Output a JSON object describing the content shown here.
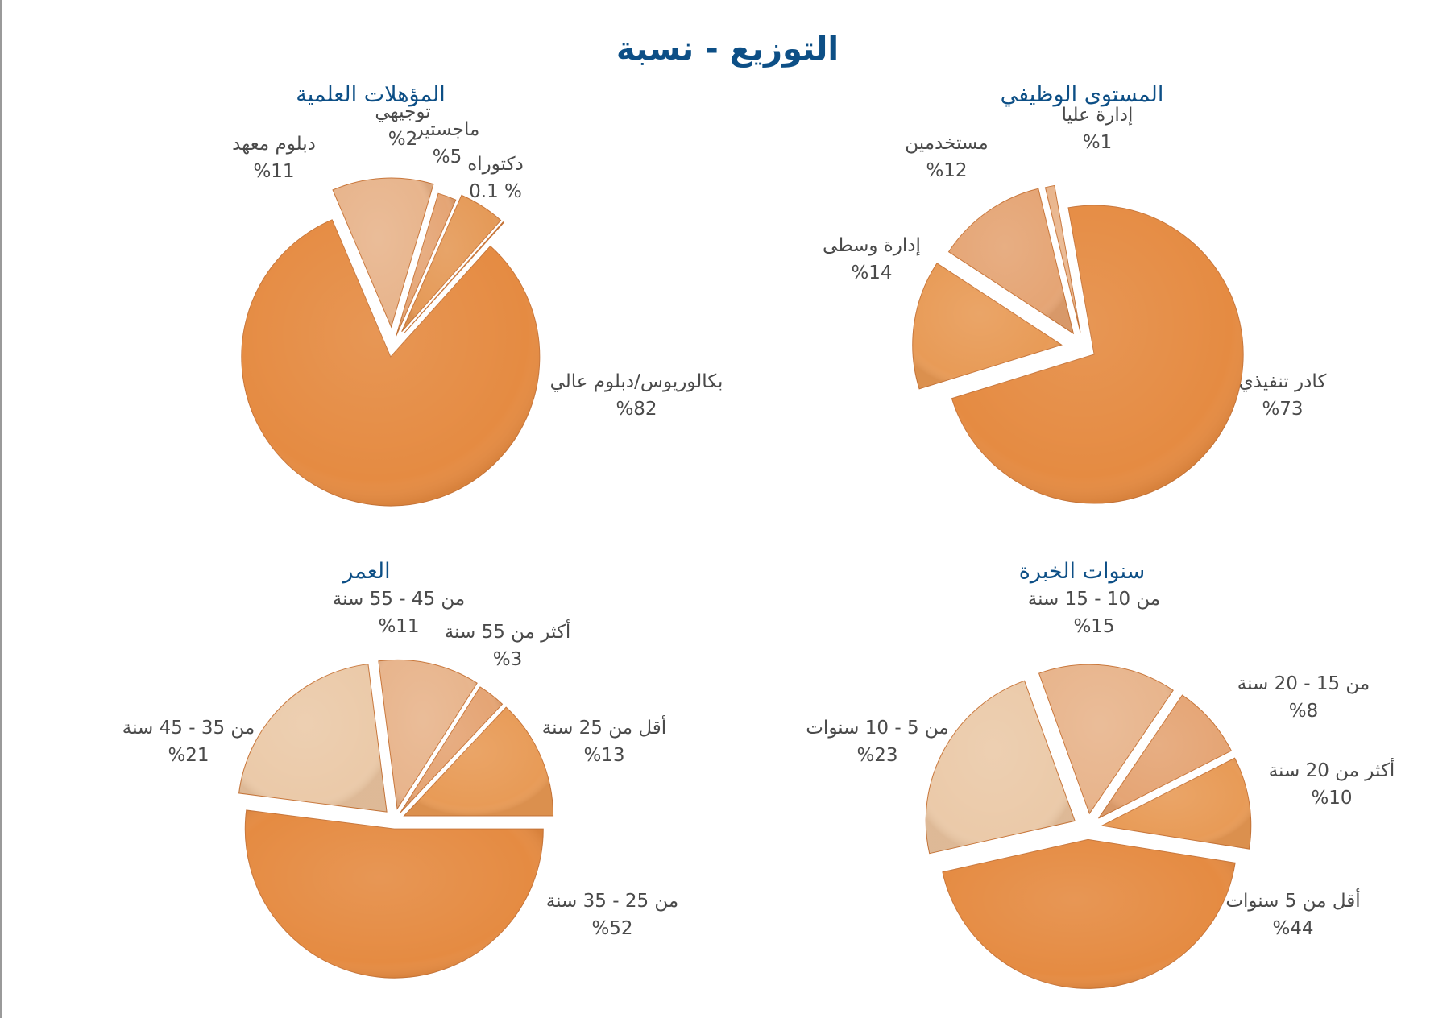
{
  "page": {
    "title": "التوزيع - نسبة"
  },
  "chart_data": [
    {
      "type": "pie",
      "title": "المستوى الوظيفي",
      "slices": [
        {
          "label": "كادر تنفيذي",
          "value_label": "%73",
          "value": 73,
          "color": "#e58b42"
        },
        {
          "label": "إدارة وسطى",
          "value_label": "%14",
          "value": 14,
          "color": "#e89b57"
        },
        {
          "label": "مستخدمين",
          "value_label": "%12",
          "value": 12,
          "color": "#e5a575"
        },
        {
          "label": "إدارة عليا",
          "value_label": "%1",
          "value": 1,
          "color": "#e9b58c"
        }
      ]
    },
    {
      "type": "pie",
      "title": "المؤهلات العلمية",
      "slices": [
        {
          "label": "بكالوريوس/دبلوم عالي",
          "value_label": "%82",
          "value": 82,
          "color": "#e58b42"
        },
        {
          "label": "دبلوم معهد",
          "value_label": "%11",
          "value": 11,
          "color": "#e8b58d"
        },
        {
          "label": "توجيهي",
          "value_label": "%2",
          "value": 2,
          "color": "#e5a575"
        },
        {
          "label": "ماجستير",
          "value_label": "%5",
          "value": 5,
          "color": "#e59a58"
        },
        {
          "label": "دكتوراه",
          "value_label": "% 0.1",
          "value": 0.1,
          "color": "#e58b42"
        }
      ]
    },
    {
      "type": "pie",
      "title": "سنوات الخبرة",
      "slices": [
        {
          "label": "أقل من 5 سنوات",
          "value_label": "%44",
          "value": 44,
          "color": "#e58b42"
        },
        {
          "label": "من 5 - 10 سنوات",
          "value_label": "%23",
          "value": 23,
          "color": "#ebcaa9"
        },
        {
          "label": "من 10 - 15 سنة",
          "value_label": "%15",
          "value": 15,
          "color": "#e8b58d"
        },
        {
          "label": "من 15 - 20 سنة",
          "value_label": "%8",
          "value": 8,
          "color": "#e5a575"
        },
        {
          "label": "أكثر من 20 سنة",
          "value_label": "%10",
          "value": 10,
          "color": "#e89b57"
        }
      ]
    },
    {
      "type": "pie",
      "title": "العمر",
      "slices": [
        {
          "label": "من 25 - 35 سنة",
          "value_label": "%52",
          "value": 52,
          "color": "#e58b42"
        },
        {
          "label": "من 35 - 45 سنة",
          "value_label": "%21",
          "value": 21,
          "color": "#ebcaa9"
        },
        {
          "label": "من 45 - 55 سنة",
          "value_label": "%11",
          "value": 11,
          "color": "#e8b58d"
        },
        {
          "label": "أكثر من 55 سنة",
          "value_label": "%3",
          "value": 3,
          "color": "#e5a575"
        },
        {
          "label": "أقل من 25 سنة",
          "value_label": "%13",
          "value": 13,
          "color": "#e89b57"
        }
      ]
    }
  ]
}
